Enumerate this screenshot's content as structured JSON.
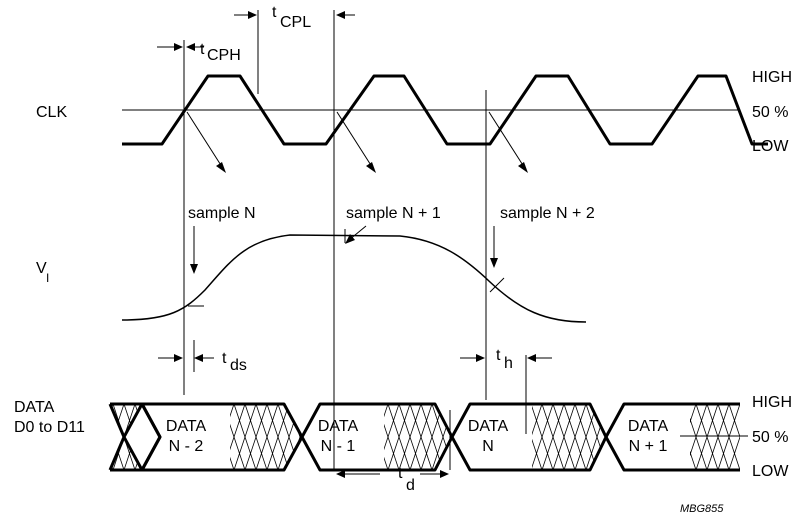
{
  "signals": {
    "clk": "CLK",
    "vi": "V",
    "vi_sub": "I",
    "data_line1": "DATA",
    "data_line2": "D0 to D11"
  },
  "levels": {
    "high": "HIGH",
    "mid": "50 %",
    "low": "LOW"
  },
  "timing": {
    "t": "t",
    "tcph_sub": "CPH",
    "tcpl_sub": "CPL",
    "tds_sub": "ds",
    "th_sub": "h",
    "td_sub": "d"
  },
  "samples": [
    "sample N",
    "sample N + 1",
    "sample N + 2"
  ],
  "data_cells": [
    {
      "line1": "DATA",
      "line2": "N - 2"
    },
    {
      "line1": "DATA",
      "line2": "N - 1"
    },
    {
      "line1": "DATA",
      "line2": "N"
    },
    {
      "line1": "DATA",
      "line2": "N + 1"
    }
  ],
  "figure_id": "MBG855"
}
